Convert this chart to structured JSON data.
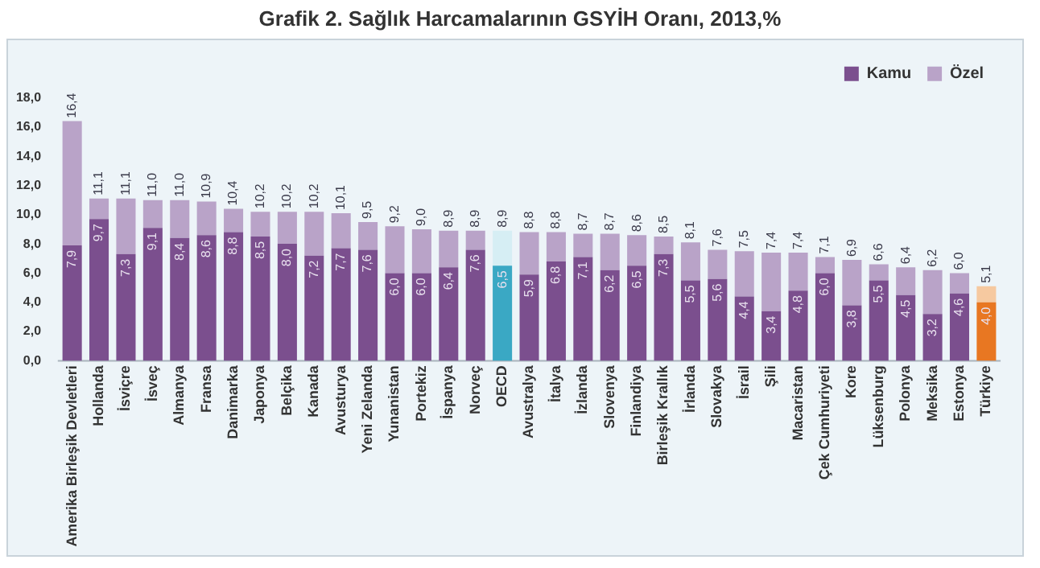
{
  "chart_data": {
    "type": "bar",
    "title": "Grafik 2. Sağlık Harcamalarının GSYİH Oranı, 2013,%",
    "categories": [
      "Amerika Birleşik Devletleri",
      "Hollanda",
      "İsviçre",
      "İsveç",
      "Almanya",
      "Fransa",
      "Danimarka",
      "Japonya",
      "Belçika",
      "Kanada",
      "Avusturya",
      "Yeni Zelanda",
      "Yunanistan",
      "Portekiz",
      "İspanya",
      "Norveç",
      "OECD",
      "Avustralya",
      "İtalya",
      "İzlanda",
      "Slovenya",
      "Finlandiya",
      "Birleşik Krallık",
      "İrlanda",
      "Slovakya",
      "İsrail",
      "Şili",
      "Macaristan",
      "Çek Cumhuriyeti",
      "Kore",
      "Lüksenburg",
      "Polonya",
      "Meksika",
      "Estonya",
      "Türkiye"
    ],
    "stacked": true,
    "series": [
      {
        "name": "Kamu",
        "color": "#7b4f8e",
        "colors": [
          "#7b4f8e",
          "#7b4f8e",
          "#7b4f8e",
          "#7b4f8e",
          "#7b4f8e",
          "#7b4f8e",
          "#7b4f8e",
          "#7b4f8e",
          "#7b4f8e",
          "#7b4f8e",
          "#7b4f8e",
          "#7b4f8e",
          "#7b4f8e",
          "#7b4f8e",
          "#7b4f8e",
          "#7b4f8e",
          "#3aa8c4",
          "#7b4f8e",
          "#7b4f8e",
          "#7b4f8e",
          "#7b4f8e",
          "#7b4f8e",
          "#7b4f8e",
          "#7b4f8e",
          "#7b4f8e",
          "#7b4f8e",
          "#7b4f8e",
          "#7b4f8e",
          "#7b4f8e",
          "#7b4f8e",
          "#7b4f8e",
          "#7b4f8e",
          "#7b4f8e",
          "#7b4f8e",
          "#e87722"
        ],
        "values": [
          7.9,
          9.7,
          7.3,
          9.1,
          8.4,
          8.6,
          8.8,
          8.5,
          8.0,
          7.2,
          7.7,
          7.6,
          6.0,
          6.0,
          6.4,
          7.6,
          6.5,
          5.9,
          6.8,
          7.1,
          6.2,
          6.5,
          7.3,
          5.5,
          5.6,
          4.4,
          3.4,
          4.8,
          6.0,
          3.8,
          5.5,
          4.5,
          3.2,
          4.6,
          4.0
        ],
        "value_labels": [
          "7,9",
          "9,7",
          "7,3",
          "9,1",
          "8,4",
          "8,6",
          "8,8",
          "8,5",
          "8,0",
          "7,2",
          "7,7",
          "7,6",
          "6,0",
          "6,0",
          "6,4",
          "7,6",
          "6,5",
          "5,9",
          "6,8",
          "7,1",
          "6,2",
          "6,5",
          "7,3",
          "5,5",
          "5,6",
          "4,4",
          "3,4",
          "4,8",
          "6,0",
          "3,8",
          "5,5",
          "4,5",
          "3,2",
          "4,6",
          "4,0"
        ]
      },
      {
        "name": "Özel",
        "color": "#b9a3c8",
        "colors": [
          "#b9a3c8",
          "#b9a3c8",
          "#b9a3c8",
          "#b9a3c8",
          "#b9a3c8",
          "#b9a3c8",
          "#b9a3c8",
          "#b9a3c8",
          "#b9a3c8",
          "#b9a3c8",
          "#b9a3c8",
          "#b9a3c8",
          "#b9a3c8",
          "#b9a3c8",
          "#b9a3c8",
          "#b9a3c8",
          "#d6eef4",
          "#b9a3c8",
          "#b9a3c8",
          "#b9a3c8",
          "#b9a3c8",
          "#b9a3c8",
          "#b9a3c8",
          "#b9a3c8",
          "#b9a3c8",
          "#b9a3c8",
          "#b9a3c8",
          "#b9a3c8",
          "#b9a3c8",
          "#b9a3c8",
          "#b9a3c8",
          "#b9a3c8",
          "#b9a3c8",
          "#b9a3c8",
          "#f6c9a0"
        ],
        "values": [
          8.5,
          1.4,
          3.8,
          1.9,
          2.6,
          2.3,
          1.6,
          1.7,
          2.2,
          3.0,
          2.4,
          1.9,
          3.2,
          3.0,
          2.5,
          1.3,
          2.4,
          2.9,
          2.0,
          1.6,
          2.5,
          2.1,
          1.2,
          2.6,
          2.0,
          3.1,
          4.0,
          2.6,
          1.1,
          3.1,
          1.1,
          1.9,
          3.0,
          1.4,
          1.1
        ]
      }
    ],
    "totals": [
      "16,4",
      "11,1",
      "11,1",
      "11,0",
      "11,0",
      "10,9",
      "10,4",
      "10,2",
      "10,2",
      "10,2",
      "10,1",
      "9,5",
      "9,2",
      "9,0",
      "8,9",
      "8,9",
      "8,9",
      "8,8",
      "8,8",
      "8,7",
      "8,7",
      "8,6",
      "8,5",
      "8,1",
      "7,6",
      "7,5",
      "7,4",
      "7,4",
      "7,1",
      "6,9",
      "6,6",
      "6,4",
      "6,2",
      "6,0",
      "5,1"
    ],
    "ylim": [
      0,
      18
    ],
    "yticks": [
      {
        "value": 0,
        "label": "0,0"
      },
      {
        "value": 2,
        "label": "2,0"
      },
      {
        "value": 4,
        "label": "4,0"
      },
      {
        "value": 6,
        "label": "6,0"
      },
      {
        "value": 8,
        "label": "8,0"
      },
      {
        "value": 10,
        "label": "10,0"
      },
      {
        "value": 12,
        "label": "12,0"
      },
      {
        "value": 14,
        "label": "14,0"
      },
      {
        "value": 16,
        "label": "16,0"
      },
      {
        "value": 18,
        "label": "18,0"
      }
    ],
    "grid": false,
    "legend": "top right"
  }
}
